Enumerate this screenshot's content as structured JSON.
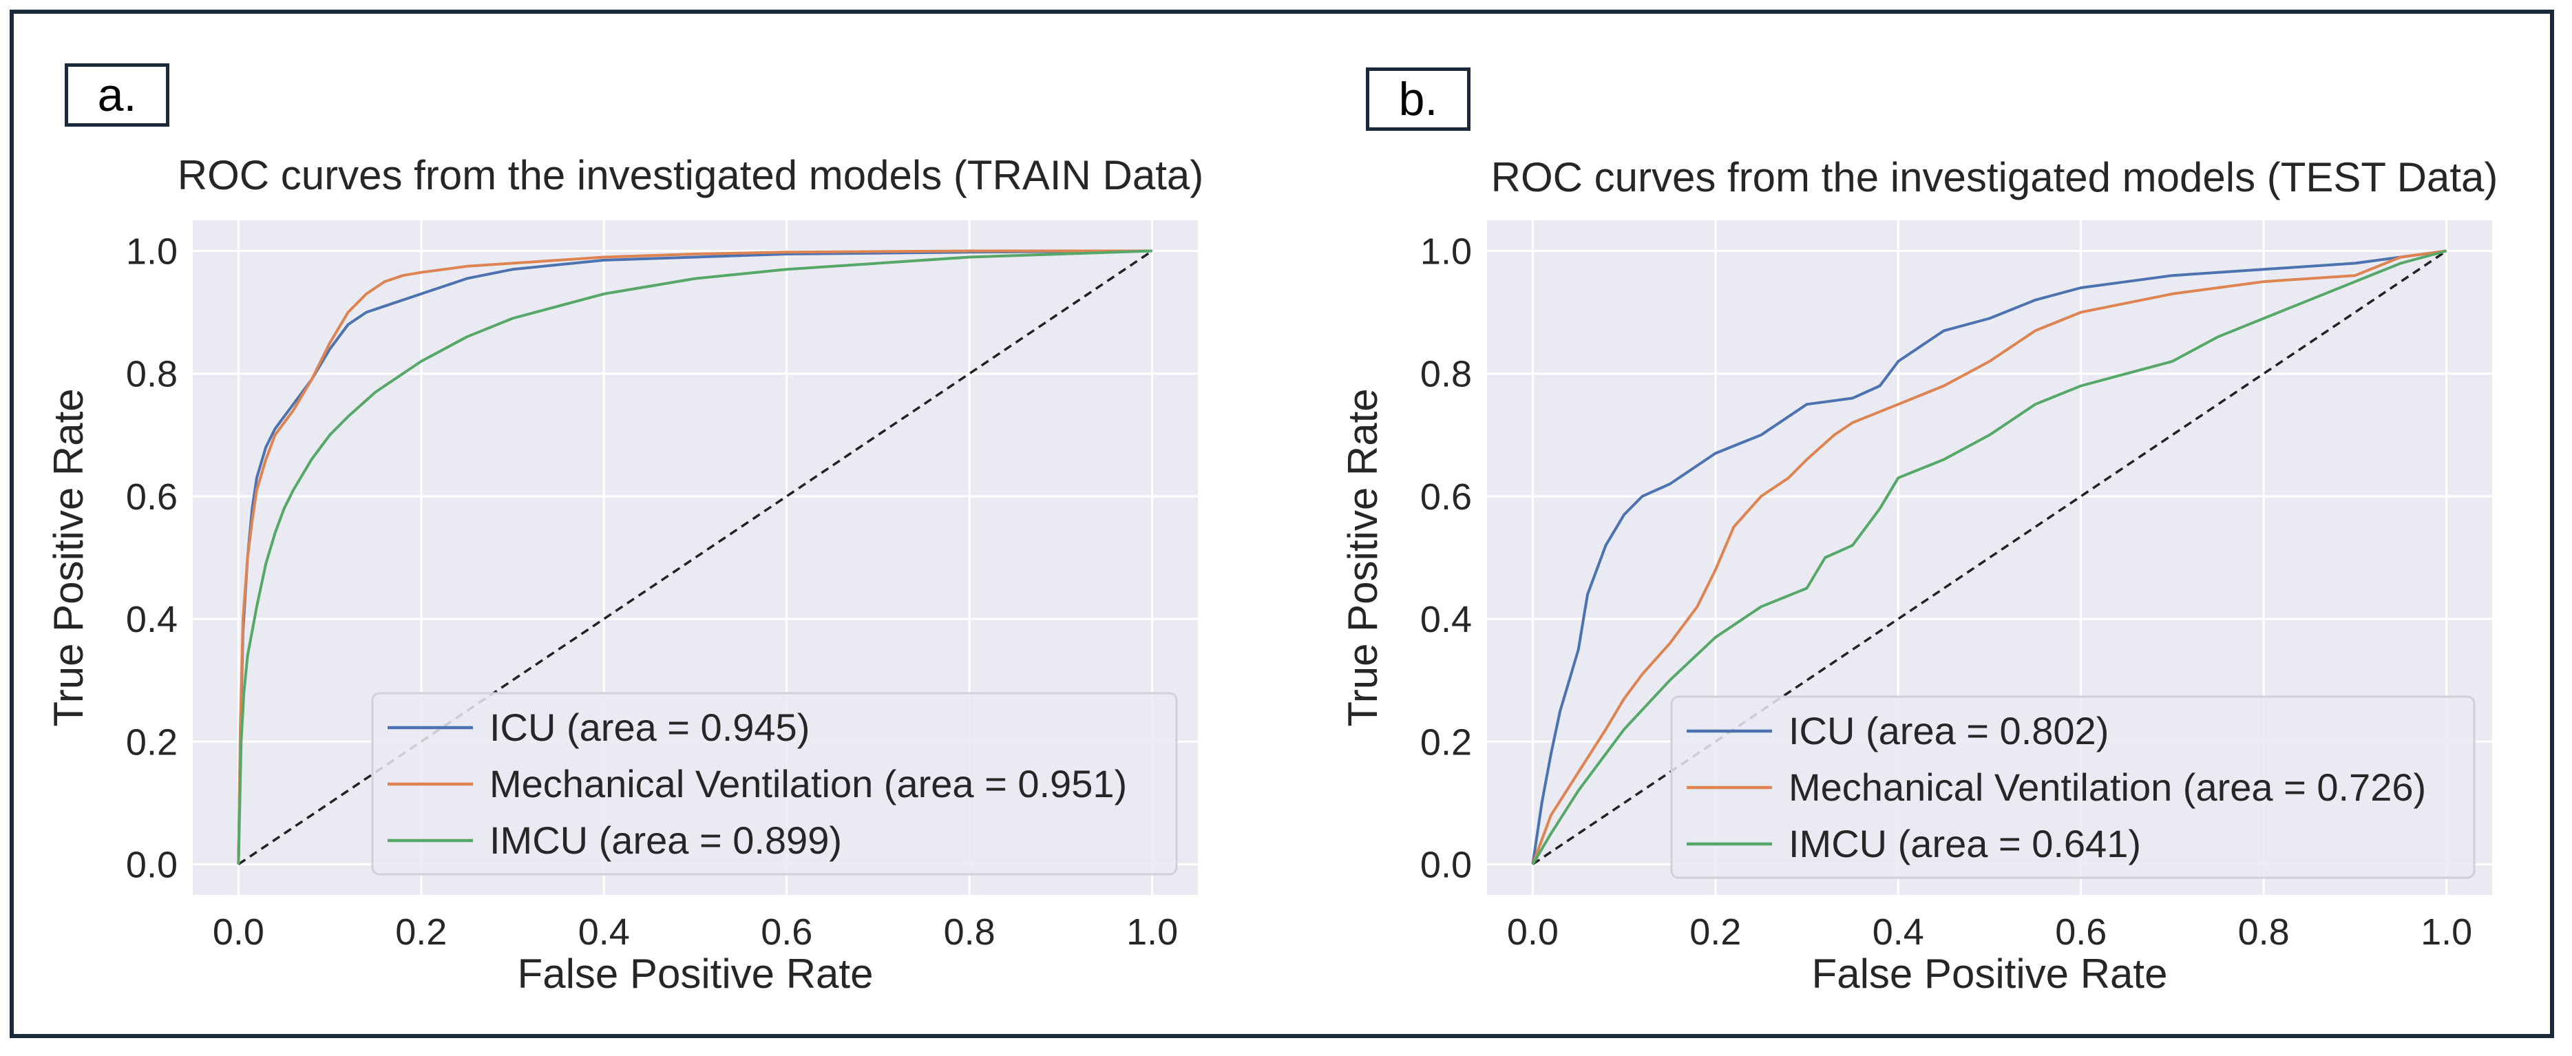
{
  "chart_data": [
    {
      "type": "line",
      "panel_label": "a.",
      "title": "ROC curves from the investigated models (TRAIN Data)",
      "xlabel": "False Positive Rate",
      "ylabel": "True Positive Rate",
      "xlim": [
        0.0,
        1.0
      ],
      "ylim": [
        0.0,
        1.0
      ],
      "xticks": [
        "0.0",
        "0.2",
        "0.4",
        "0.6",
        "0.8",
        "1.0"
      ],
      "yticks": [
        "0.0",
        "0.2",
        "0.4",
        "0.6",
        "0.8",
        "1.0"
      ],
      "grid": true,
      "legend_position": "lower-right",
      "series": [
        {
          "name": "ICU (area = 0.945)",
          "color": "#4c72b0",
          "x": [
            0,
            0.002,
            0.005,
            0.01,
            0.015,
            0.02,
            0.03,
            0.04,
            0.05,
            0.06,
            0.08,
            0.1,
            0.12,
            0.14,
            0.16,
            0.2,
            0.25,
            0.3,
            0.4,
            0.5,
            0.6,
            0.8,
            1.0
          ],
          "y": [
            0,
            0.2,
            0.38,
            0.5,
            0.58,
            0.63,
            0.68,
            0.71,
            0.73,
            0.75,
            0.79,
            0.84,
            0.88,
            0.9,
            0.91,
            0.93,
            0.955,
            0.97,
            0.985,
            0.99,
            0.995,
            0.998,
            1.0
          ]
        },
        {
          "name": "Mechanical Ventilation (area = 0.951)",
          "color": "#dd8452",
          "x": [
            0,
            0.002,
            0.005,
            0.01,
            0.015,
            0.02,
            0.03,
            0.04,
            0.05,
            0.06,
            0.08,
            0.1,
            0.12,
            0.14,
            0.16,
            0.18,
            0.2,
            0.25,
            0.3,
            0.4,
            0.5,
            0.6,
            0.8,
            1.0
          ],
          "y": [
            0,
            0.22,
            0.4,
            0.5,
            0.56,
            0.61,
            0.66,
            0.7,
            0.72,
            0.74,
            0.79,
            0.85,
            0.9,
            0.93,
            0.95,
            0.96,
            0.965,
            0.975,
            0.98,
            0.99,
            0.995,
            0.998,
            1.0,
            1.0
          ]
        },
        {
          "name": "IMCU (area = 0.899)",
          "color": "#55a868",
          "x": [
            0,
            0.003,
            0.006,
            0.01,
            0.015,
            0.02,
            0.03,
            0.04,
            0.05,
            0.06,
            0.08,
            0.1,
            0.12,
            0.15,
            0.2,
            0.25,
            0.3,
            0.4,
            0.5,
            0.6,
            0.7,
            0.8,
            0.9,
            1.0
          ],
          "y": [
            0,
            0.2,
            0.28,
            0.34,
            0.38,
            0.42,
            0.49,
            0.54,
            0.58,
            0.61,
            0.66,
            0.7,
            0.73,
            0.77,
            0.82,
            0.86,
            0.89,
            0.93,
            0.955,
            0.97,
            0.98,
            0.99,
            0.995,
            1.0
          ]
        }
      ]
    },
    {
      "type": "line",
      "panel_label": "b.",
      "title": "ROC curves from the investigated models (TEST Data)",
      "xlabel": "False Positive Rate",
      "ylabel": "True Positive Rate",
      "xlim": [
        0.0,
        1.0
      ],
      "ylim": [
        0.0,
        1.0
      ],
      "xticks": [
        "0.0",
        "0.2",
        "0.4",
        "0.6",
        "0.8",
        "1.0"
      ],
      "yticks": [
        "0.0",
        "0.2",
        "0.4",
        "0.6",
        "0.8",
        "1.0"
      ],
      "grid": true,
      "legend_position": "lower-right",
      "series": [
        {
          "name": "ICU (area = 0.802)",
          "color": "#4c72b0",
          "x": [
            0,
            0.01,
            0.02,
            0.03,
            0.04,
            0.05,
            0.06,
            0.07,
            0.08,
            0.1,
            0.12,
            0.15,
            0.2,
            0.25,
            0.3,
            0.35,
            0.38,
            0.4,
            0.45,
            0.5,
            0.55,
            0.6,
            0.7,
            0.8,
            0.9,
            0.95,
            1.0
          ],
          "y": [
            0,
            0.1,
            0.18,
            0.25,
            0.3,
            0.35,
            0.44,
            0.48,
            0.52,
            0.57,
            0.6,
            0.62,
            0.67,
            0.7,
            0.75,
            0.76,
            0.78,
            0.82,
            0.87,
            0.89,
            0.92,
            0.94,
            0.96,
            0.97,
            0.98,
            0.99,
            1.0
          ]
        },
        {
          "name": "Mechanical Ventilation (area = 0.726)",
          "color": "#dd8452",
          "x": [
            0,
            0.02,
            0.05,
            0.08,
            0.1,
            0.12,
            0.15,
            0.18,
            0.2,
            0.22,
            0.25,
            0.28,
            0.3,
            0.33,
            0.35,
            0.4,
            0.45,
            0.5,
            0.55,
            0.6,
            0.7,
            0.8,
            0.9,
            0.95,
            1.0
          ],
          "y": [
            0,
            0.08,
            0.15,
            0.22,
            0.27,
            0.31,
            0.36,
            0.42,
            0.48,
            0.55,
            0.6,
            0.63,
            0.66,
            0.7,
            0.72,
            0.75,
            0.78,
            0.82,
            0.87,
            0.9,
            0.93,
            0.95,
            0.96,
            0.99,
            1.0
          ]
        },
        {
          "name": "IMCU (area = 0.641)",
          "color": "#55a868",
          "x": [
            0,
            0.02,
            0.05,
            0.08,
            0.1,
            0.15,
            0.2,
            0.25,
            0.3,
            0.32,
            0.35,
            0.38,
            0.4,
            0.45,
            0.5,
            0.55,
            0.6,
            0.65,
            0.7,
            0.75,
            0.8,
            0.85,
            0.9,
            0.95,
            1.0
          ],
          "y": [
            0,
            0.05,
            0.12,
            0.18,
            0.22,
            0.3,
            0.37,
            0.42,
            0.45,
            0.5,
            0.52,
            0.58,
            0.63,
            0.66,
            0.7,
            0.75,
            0.78,
            0.8,
            0.82,
            0.86,
            0.89,
            0.92,
            0.95,
            0.98,
            1.0
          ]
        }
      ]
    }
  ]
}
